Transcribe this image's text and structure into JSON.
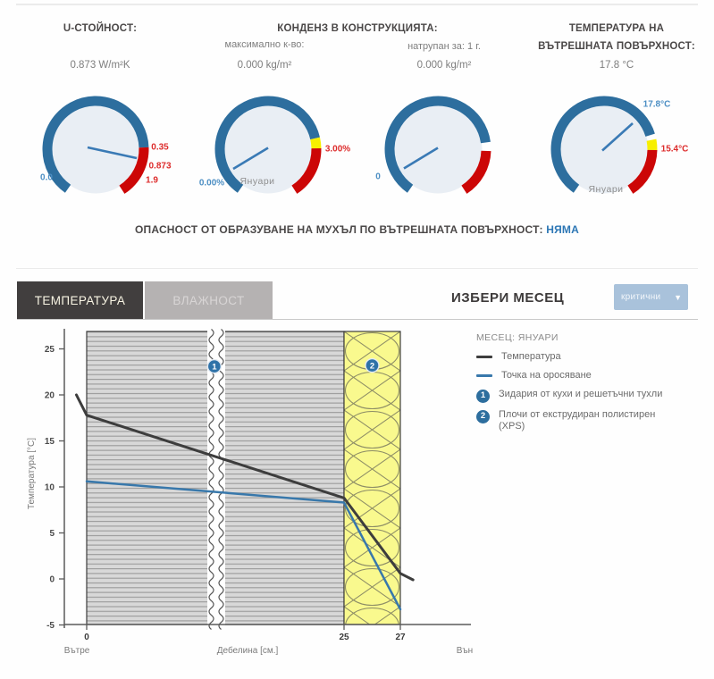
{
  "panel": {
    "u_value": {
      "title": "U-СТОЙНОСТ:",
      "value": "0.873 W/m²K",
      "gauge": {
        "min": "0.0",
        "limit": "0.35",
        "current": "0.873",
        "max": "1.9"
      }
    },
    "condensation": {
      "title": "КОНДЕНЗ В КОНСТРУКЦИЯТА:",
      "max_amount": {
        "label": "максимално к-во:",
        "value": "0.000 kg/m²",
        "gauge": {
          "min": "0.00%",
          "limit": "3.00%",
          "month": "Януари"
        }
      },
      "accumulated": {
        "label": "натрупан за: 1 г.",
        "value": "0.000 kg/m²",
        "gauge": {
          "min": "0"
        }
      }
    },
    "surface_temperature": {
      "title_line1": "ТЕМПЕРАТУРА НА",
      "title_line2": "ВЪТРЕШНАТА ПОВЪРХНОСТ:",
      "value": "17.8 °C",
      "gauge": {
        "current": "17.8°C",
        "limit": "15.4°C",
        "month": "Януари"
      }
    }
  },
  "mold": {
    "label": "ОПАСНОСТ ОТ ОБРАЗУВАНЕ НА МУХЪЛ ПО ВЪТРЕШНАТА ПОВЪРХНОСТ:",
    "status": "НЯМА"
  },
  "tabs": [
    {
      "label": "ТЕМПЕРАТУРА",
      "active": true
    },
    {
      "label": "ВЛАЖНОСТ",
      "active": false
    }
  ],
  "month_select": {
    "label": "ИЗБЕРИ МЕСЕЦ",
    "selected": "критични"
  },
  "chart_data": {
    "type": "line",
    "month_label": "МЕСЕЦ: ЯНУАРИ",
    "xlabel": "Дебелина [см.]",
    "ylabel": "Температура [°C]",
    "inside_label": "Вътре",
    "outside_label": "Вън",
    "x_ticks": [
      0,
      25,
      27
    ],
    "y_ticks": [
      -5,
      0,
      5,
      10,
      15,
      20,
      25
    ],
    "ylim": [
      -5,
      27
    ],
    "xlim_cm": [
      -1.2,
      29
    ],
    "axis_break_at_cm": 12.5,
    "series": [
      {
        "name": "Температура",
        "color": "#3d3d3d",
        "points": [
          [
            -1.0,
            20.0
          ],
          [
            0,
            17.8
          ],
          [
            25,
            8.8
          ],
          [
            27,
            0.6
          ],
          [
            27.45,
            -0.1
          ]
        ]
      },
      {
        "name": "Точка на оросяване",
        "color": "#3878ab",
        "points": [
          [
            0,
            10.6
          ],
          [
            25,
            8.3
          ],
          [
            27,
            -3.3
          ]
        ]
      }
    ],
    "layers": [
      {
        "id": "1",
        "name": "Зидария от кухи и решетъчни тухли",
        "from_cm": 0,
        "to_cm": 25,
        "marker_at": [
          12.4,
          23.1
        ]
      },
      {
        "id": "2",
        "name": "Плочи от екструдиран полистирен (XPS)",
        "from_cm": 25,
        "to_cm": 27,
        "marker_at": [
          26.0,
          23.2
        ]
      }
    ]
  },
  "colors": {
    "gauge_ring_blue": "#2d6e9e",
    "gauge_red": "#cc0606",
    "gauge_yellow": "#f7ef00",
    "label_blue": "#4d8fc4",
    "label_red": "#dd2c2c",
    "temperature_line": "#3d3d3d",
    "dewpoint_line": "#3878ab",
    "masonry_fill": "#d8d8d8",
    "xps_fill": "#f9f98e",
    "active_tab_bg": "#413e3e",
    "dropdown_bg": "#a9c2db"
  }
}
